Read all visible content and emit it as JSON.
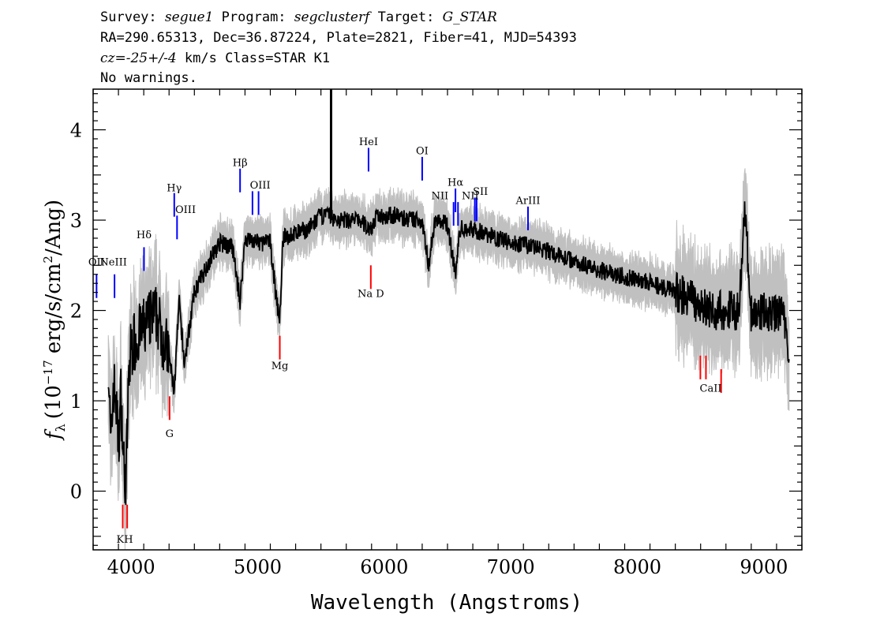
{
  "header": {
    "line1": {
      "survey_label": "Survey:",
      "survey": "segue1",
      "program_label": "Program:",
      "program": "segclusterf",
      "target_label": "Target:",
      "target": "G_STAR"
    },
    "line2": "RA=290.65313, Dec=36.87224, Plate=2821, Fiber=41, MJD=54393",
    "line3": {
      "cz_label": "cz=",
      "cz_value": "-25+/-4",
      "cz_rest": " km/s Class=STAR K1"
    },
    "line4": "No warnings."
  },
  "chart_data": {
    "type": "line",
    "xlabel": "Wavelength (Angstroms)",
    "ylabel": "f_λ (10^-17 erg/s/cm^2/Ang)",
    "ylabel_parts": {
      "f": "f",
      "lambda": "λ",
      "open": "(10",
      "exp": "−17",
      "mid": " erg/s/cm",
      "sq": "2",
      "close": "/Ang)"
    },
    "xlim": [
      3700,
      9300
    ],
    "ylim": [
      -0.65,
      4.45
    ],
    "xticks": [
      4000,
      5000,
      6000,
      7000,
      8000,
      9000
    ],
    "xtick_labels": [
      "4000",
      "5000",
      "6000",
      "7000",
      "8000",
      "9000"
    ],
    "yticks": [
      0,
      1,
      2,
      3,
      4
    ],
    "ytick_labels": [
      "0",
      "1",
      "2",
      "3",
      "4"
    ],
    "series": [
      {
        "color": "#000000",
        "x": [
          3820,
          3840,
          3860,
          3880,
          3900,
          3920,
          3940,
          3960,
          3980,
          4000,
          4050,
          4100,
          4150,
          4200,
          4250,
          4300,
          4340,
          4380,
          4420,
          4500,
          4600,
          4700,
          4800,
          4861,
          4900,
          5000,
          5100,
          5150,
          5175,
          5200,
          5300,
          5400,
          5500,
          5580,
          5600,
          5700,
          5800,
          5890,
          5950,
          6000,
          6100,
          6200,
          6300,
          6350,
          6400,
          6500,
          6563,
          6600,
          6700,
          6800,
          6900,
          7000,
          7200,
          7400,
          7600,
          7800,
          8000,
          8200,
          8400,
          8500,
          8600,
          8700,
          8800,
          8850,
          8900,
          9000,
          9100,
          9150,
          9200
        ],
        "y": [
          1.5,
          0.4,
          1.2,
          1.0,
          0.5,
          1.1,
          0.3,
          0.1,
          1.2,
          1.6,
          1.7,
          1.8,
          1.9,
          1.95,
          1.7,
          1.5,
          1.1,
          2.1,
          1.4,
          2.2,
          2.5,
          2.75,
          2.7,
          2.1,
          2.8,
          2.75,
          2.75,
          2.1,
          1.9,
          2.8,
          2.85,
          2.9,
          3.05,
          3.05,
          3.0,
          3.0,
          3.0,
          2.9,
          3.05,
          3.05,
          3.05,
          3.0,
          3.0,
          2.5,
          3.0,
          2.95,
          2.4,
          2.9,
          2.9,
          2.85,
          2.8,
          2.75,
          2.7,
          2.6,
          2.5,
          2.4,
          2.35,
          2.25,
          2.15,
          2.05,
          2.0,
          2.0,
          2.0,
          3.1,
          1.95,
          2.0,
          1.95,
          2.0,
          1.5
        ]
      }
    ],
    "error_color": "#c0c0c0",
    "lines": [
      {
        "name": "OII",
        "wave": 3727,
        "color": "#0000ff",
        "kind": "emission",
        "y_data": 2.4
      },
      {
        "name": "NeIII",
        "wave": 3869,
        "color": "#0000ff",
        "kind": "emission",
        "y_data": 2.4
      },
      {
        "name": "Hδ",
        "wave": 4102,
        "color": "#0000ff",
        "kind": "emission",
        "y_data": 2.7
      },
      {
        "name": "Hγ",
        "wave": 4341,
        "color": "#0000ff",
        "kind": "emission",
        "y_data": 3.3
      },
      {
        "name": "OIII",
        "wave": 4363,
        "color": "#0000ff",
        "kind": "emission",
        "y_data": 3.05
      },
      {
        "name": "Hβ",
        "wave": 4861,
        "color": "#0000ff",
        "kind": "emission",
        "y_data": 3.57
      },
      {
        "name": "OIII",
        "wave": 4959,
        "color": "#0000ff",
        "kind": "emission",
        "y_data": 3.32
      },
      {
        "name": "OIII",
        "wave": 5007,
        "color": "#0000ff",
        "kind": "emission",
        "y_data": 3.32
      },
      {
        "name": "HeI",
        "wave": 5876,
        "color": "#0000ff",
        "kind": "emission",
        "y_data": 3.8
      },
      {
        "name": "OI",
        "wave": 6300,
        "color": "#0000ff",
        "kind": "emission",
        "y_data": 3.7
      },
      {
        "name": "NII",
        "wave": 6548,
        "color": "#0000ff",
        "kind": "emission",
        "y_data": 3.2
      },
      {
        "name": "Hα",
        "wave": 6563,
        "color": "#0000ff",
        "kind": "emission",
        "y_data": 3.35
      },
      {
        "name": "NII",
        "wave": 6583,
        "color": "#0000ff",
        "kind": "emission",
        "y_data": 3.2
      },
      {
        "name": "SII",
        "wave": 6716,
        "color": "#0000ff",
        "kind": "emission",
        "y_data": 3.25
      },
      {
        "name": "SII",
        "wave": 6730,
        "color": "#0000ff",
        "kind": "emission",
        "y_data": 3.25
      },
      {
        "name": "ArIII",
        "wave": 7136,
        "color": "#0000ff",
        "kind": "emission",
        "y_data": 3.15
      },
      {
        "name": "K",
        "wave": 3934,
        "color": "#ff0000",
        "kind": "absorption",
        "y_data": -0.15
      },
      {
        "name": "H",
        "wave": 3969,
        "color": "#ff0000",
        "kind": "absorption",
        "y_data": -0.15
      },
      {
        "name": "G",
        "wave": 4304,
        "color": "#ff0000",
        "kind": "absorption",
        "y_data": 1.05
      },
      {
        "name": "Mg",
        "wave": 5175,
        "color": "#ff0000",
        "kind": "absorption",
        "y_data": 1.72
      },
      {
        "name": "Na",
        "wave": 5894,
        "color": "#ff0000",
        "kind": "absorption",
        "y_data": 2.5
      },
      {
        "name": "CaII",
        "wave": 8498,
        "color": "#ff0000",
        "kind": "absorption",
        "y_data": 1.5
      },
      {
        "name": "CaII",
        "wave": 8542,
        "color": "#ff0000",
        "kind": "absorption",
        "y_data": 1.5
      },
      {
        "name": "CaII",
        "wave": 8662,
        "color": "#ff0000",
        "kind": "absorption",
        "y_data": 1.35
      }
    ],
    "line_labels": [
      {
        "text": "OII",
        "wave": 3727,
        "y_data": 2.5
      },
      {
        "text": "NeIII",
        "wave": 3860,
        "y_data": 2.5
      },
      {
        "text": "Hδ",
        "wave": 4102,
        "y_data": 2.8
      },
      {
        "text": "Hγ",
        "wave": 4341,
        "y_data": 3.32
      },
      {
        "text": "OIII",
        "wave": 4430,
        "y_data": 3.08
      },
      {
        "text": "Hβ",
        "wave": 4861,
        "y_data": 3.6
      },
      {
        "text": "OIII",
        "wave": 5020,
        "y_data": 3.35
      },
      {
        "text": "HeI",
        "wave": 5876,
        "y_data": 3.83
      },
      {
        "text": "OI",
        "wave": 6300,
        "y_data": 3.73
      },
      {
        "text": "NII",
        "wave": 6440,
        "y_data": 3.23
      },
      {
        "text": "Hα",
        "wave": 6563,
        "y_data": 3.38
      },
      {
        "text": "NII",
        "wave": 6680,
        "y_data": 3.23
      },
      {
        "text": "SII",
        "wave": 6760,
        "y_data": 3.28
      },
      {
        "text": "ArIII",
        "wave": 7136,
        "y_data": 3.18
      },
      {
        "text": "KH",
        "wave": 3950,
        "y_data": -0.57
      },
      {
        "text": "G",
        "wave": 4304,
        "y_data": 0.6
      },
      {
        "text": "Mg",
        "wave": 5175,
        "y_data": 1.35
      },
      {
        "text": "Na D",
        "wave": 5894,
        "y_data": 2.15
      },
      {
        "text": "CaII",
        "wave": 8580,
        "y_data": 1.1
      }
    ]
  }
}
